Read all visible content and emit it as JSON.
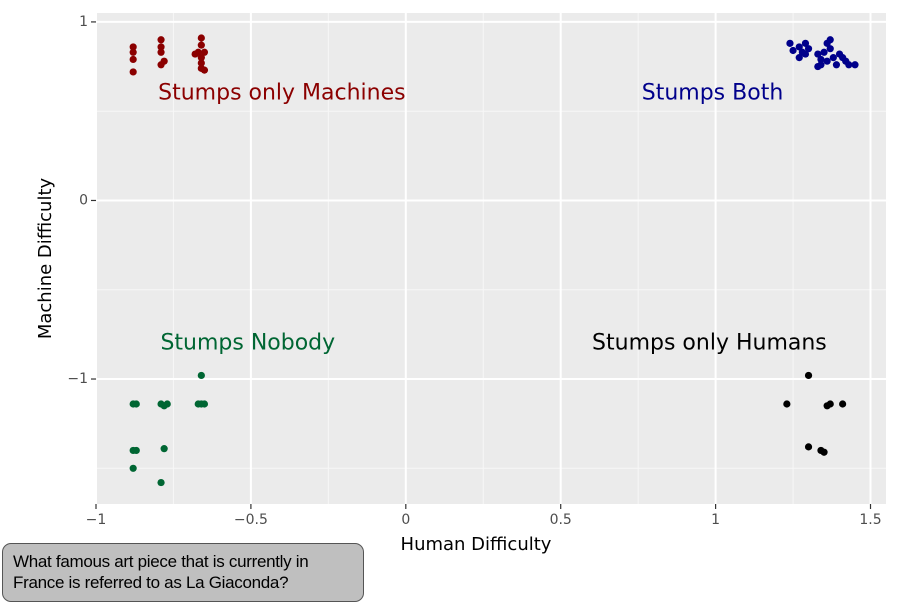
{
  "question": {
    "text": "What famous art piece that is currently in France is referred to as La Giaconda?"
  },
  "chart_data": {
    "type": "scatter",
    "title": "",
    "xlabel": "Human Difficulty",
    "ylabel": "Machine Difficulty",
    "xlim": [
      -1,
      1.55
    ],
    "ylim": [
      -1.7,
      1.05
    ],
    "xticks": [
      -1,
      -0.5,
      0,
      0.5,
      1,
      1.5
    ],
    "xtick_labels": [
      "−1",
      "−0.5",
      "0",
      "0.5",
      "1",
      "1.5"
    ],
    "yticks": [
      -1,
      0,
      1
    ],
    "ytick_labels": [
      "−1",
      "0",
      "1"
    ],
    "grid": true,
    "annotations": [
      {
        "text": "Stumps only Machines",
        "x": -0.4,
        "y": 0.6,
        "color": "#8b0000"
      },
      {
        "text": "Stumps Both",
        "x": 0.99,
        "y": 0.6,
        "color": "#00008b"
      },
      {
        "text": "Stumps Nobody",
        "x": -0.51,
        "y": -0.8,
        "color": "#006633"
      },
      {
        "text": "Stumps only Humans",
        "x": 0.98,
        "y": -0.8,
        "color": "#000000"
      }
    ],
    "series": [
      {
        "color": "#8b0000",
        "points": [
          [
            -0.88,
            0.86
          ],
          [
            -0.88,
            0.83
          ],
          [
            -0.88,
            0.79
          ],
          [
            -0.88,
            0.72
          ],
          [
            -0.79,
            0.9
          ],
          [
            -0.79,
            0.86
          ],
          [
            -0.79,
            0.83
          ],
          [
            -0.78,
            0.78
          ],
          [
            -0.79,
            0.76
          ],
          [
            -0.66,
            0.91
          ],
          [
            -0.66,
            0.87
          ],
          [
            -0.67,
            0.83
          ],
          [
            -0.65,
            0.83
          ],
          [
            -0.66,
            0.8
          ],
          [
            -0.68,
            0.82
          ],
          [
            -0.66,
            0.77
          ],
          [
            -0.66,
            0.74
          ],
          [
            -0.65,
            0.73
          ]
        ]
      },
      {
        "color": "#00008b",
        "points": [
          [
            1.24,
            0.88
          ],
          [
            1.25,
            0.84
          ],
          [
            1.27,
            0.86
          ],
          [
            1.28,
            0.83
          ],
          [
            1.29,
            0.88
          ],
          [
            1.3,
            0.85
          ],
          [
            1.29,
            0.82
          ],
          [
            1.27,
            0.8
          ],
          [
            1.33,
            0.82
          ],
          [
            1.34,
            0.79
          ],
          [
            1.35,
            0.83
          ],
          [
            1.36,
            0.88
          ],
          [
            1.37,
            0.9
          ],
          [
            1.37,
            0.85
          ],
          [
            1.38,
            0.8
          ],
          [
            1.36,
            0.78
          ],
          [
            1.34,
            0.76
          ],
          [
            1.39,
            0.76
          ],
          [
            1.4,
            0.82
          ],
          [
            1.41,
            0.8
          ],
          [
            1.42,
            0.78
          ],
          [
            1.43,
            0.76
          ],
          [
            1.45,
            0.76
          ],
          [
            1.33,
            0.75
          ]
        ]
      },
      {
        "color": "#006633",
        "points": [
          [
            -0.88,
            -1.14
          ],
          [
            -0.87,
            -1.14
          ],
          [
            -0.88,
            -1.4
          ],
          [
            -0.87,
            -1.4
          ],
          [
            -0.88,
            -1.5
          ],
          [
            -0.79,
            -1.14
          ],
          [
            -0.78,
            -1.15
          ],
          [
            -0.77,
            -1.14
          ],
          [
            -0.78,
            -1.39
          ],
          [
            -0.79,
            -1.58
          ],
          [
            -0.66,
            -0.98
          ],
          [
            -0.66,
            -1.14
          ],
          [
            -0.67,
            -1.14
          ],
          [
            -0.65,
            -1.14
          ]
        ]
      },
      {
        "color": "#000000",
        "points": [
          [
            1.23,
            -1.14
          ],
          [
            1.3,
            -0.98
          ],
          [
            1.3,
            -1.38
          ],
          [
            1.34,
            -1.4
          ],
          [
            1.35,
            -1.41
          ],
          [
            1.36,
            -1.15
          ],
          [
            1.37,
            -1.14
          ],
          [
            1.41,
            -1.14
          ]
        ]
      }
    ]
  }
}
